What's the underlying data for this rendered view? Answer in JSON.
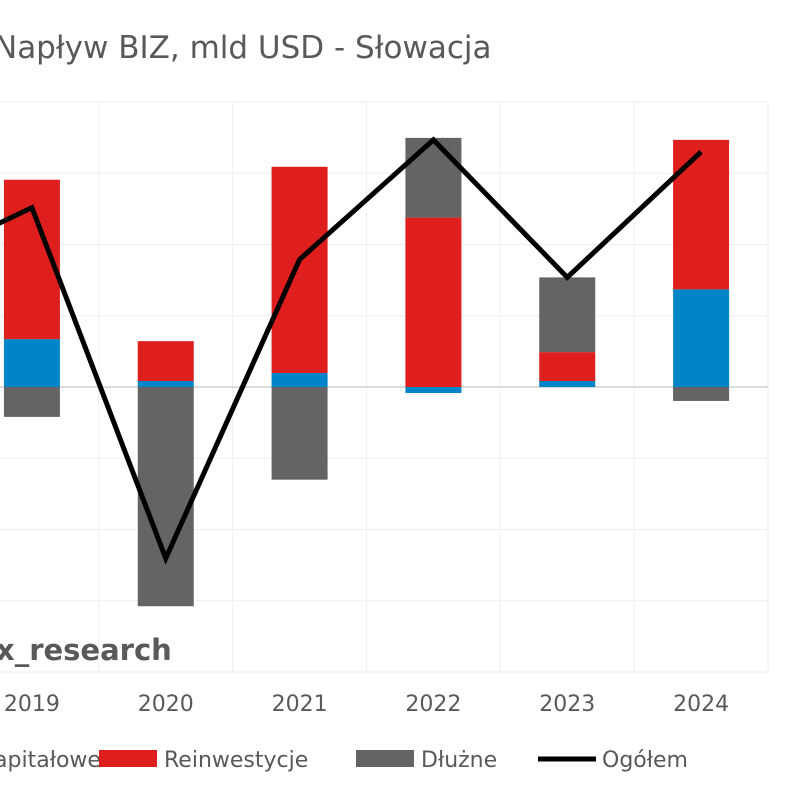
{
  "chart_data": {
    "type": "bar",
    "stacked": true,
    "title": "Napływ BIZ, mld USD - Słowacja",
    "categories": [
      "2019",
      "2020",
      "2021",
      "2022",
      "2023",
      "2024"
    ],
    "series": [
      {
        "name": "Kapitałowe",
        "color": "#0085C8",
        "values": [
          0.48,
          0.06,
          0.14,
          -0.06,
          0.06,
          0.98
        ]
      },
      {
        "name": "Reinwestycje",
        "color": "#DF1E1E",
        "values": [
          1.6,
          0.4,
          2.07,
          1.7,
          0.29,
          1.5
        ]
      },
      {
        "name": "Dłużne",
        "color": "#646464",
        "values": [
          -0.3,
          -2.2,
          -0.93,
          0.8,
          0.75,
          -0.14
        ]
      }
    ],
    "line": {
      "name": "Ogółem",
      "color": "#000000",
      "values": [
        1.8,
        -1.72,
        1.28,
        2.48,
        1.1,
        2.36
      ]
    },
    "ylim": [
      -2.86,
      2.86
    ],
    "grid": true,
    "legend_position": "bottom",
    "watermark": "x_research"
  }
}
